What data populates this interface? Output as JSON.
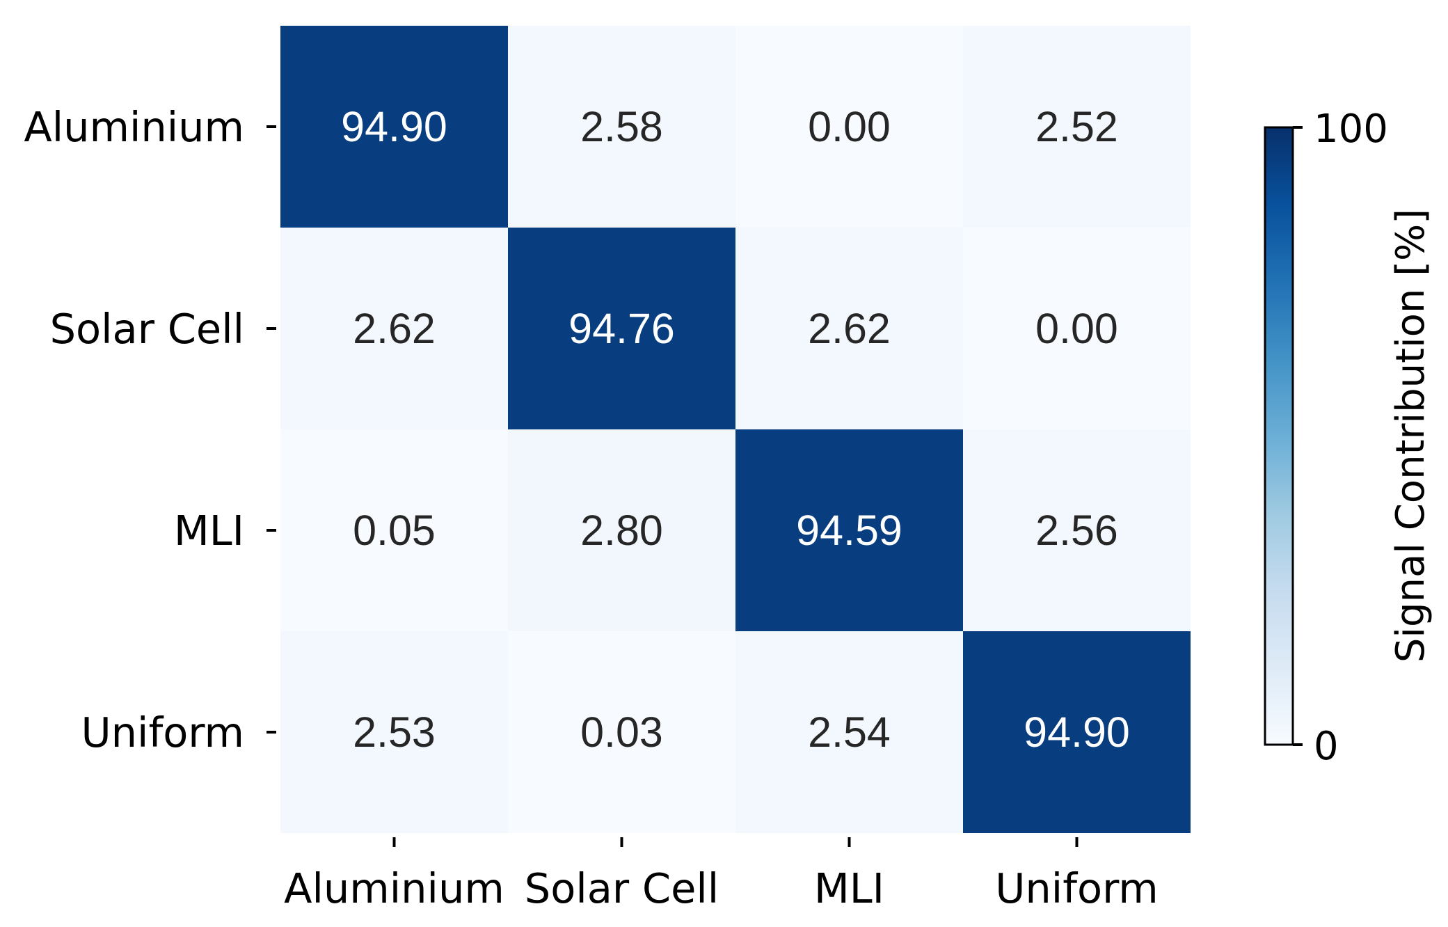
{
  "chart_data": {
    "type": "heatmap",
    "rows": [
      "Aluminium",
      "Solar Cell",
      "MLI",
      "Uniform"
    ],
    "columns": [
      "Aluminium",
      "Solar Cell",
      "MLI",
      "Uniform"
    ],
    "values": [
      [
        94.9,
        2.58,
        0.0,
        2.52
      ],
      [
        2.62,
        94.76,
        2.62,
        0.0
      ],
      [
        0.05,
        2.8,
        94.59,
        2.56
      ],
      [
        2.53,
        0.03,
        2.54,
        94.9
      ]
    ],
    "value_labels": [
      [
        "94.90",
        "2.58",
        "0.00",
        "2.52"
      ],
      [
        "2.62",
        "94.76",
        "2.62",
        "0.00"
      ],
      [
        "0.05",
        "2.80",
        "94.59",
        "2.56"
      ],
      [
        "2.53",
        "0.03",
        "2.54",
        "94.90"
      ]
    ],
    "colorbar": {
      "label": "Signal Contribution [%]",
      "range": [
        0,
        100
      ],
      "ticks": [
        "0",
        "100"
      ],
      "colormap": "Blues",
      "color_low": "#f7fbff",
      "color_high": "#08306b"
    },
    "label_colors": {
      "dark_cell_text": "#ffffff",
      "light_cell_text": "#262626"
    }
  }
}
